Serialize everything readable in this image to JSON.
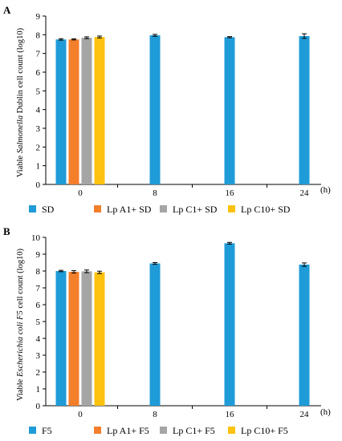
{
  "chart_data": [
    {
      "type": "bar",
      "panel_label": "A",
      "ylabel_pre": "Viable ",
      "ylabel_italic": "Salmonella",
      "ylabel_post": " Dublin cell count (log10)",
      "x_unit": "(h)",
      "categories": [
        "0",
        "8",
        "16",
        "24"
      ],
      "ylim": [
        0,
        9
      ],
      "yticks": [
        "0",
        "1",
        "2",
        "3",
        "4",
        "5",
        "6",
        "7",
        "8",
        "9"
      ],
      "grid": false,
      "legend_position": "bottom",
      "series": [
        {
          "name": "SD",
          "color": "#1f9bd7",
          "values": [
            7.75,
            7.97,
            7.87,
            7.93
          ],
          "errors": [
            0.04,
            0.05,
            0.03,
            0.12
          ]
        },
        {
          "name": "Lp A1+ SD",
          "color": "#f47f2b",
          "values": [
            7.75,
            null,
            null,
            null
          ],
          "errors": [
            0.03,
            null,
            null,
            null
          ]
        },
        {
          "name": "Lp C1+ SD",
          "color": "#a5a5a5",
          "values": [
            7.84,
            null,
            null,
            null
          ],
          "errors": [
            0.05,
            null,
            null,
            null
          ]
        },
        {
          "name": "Lp C10+ SD",
          "color": "#fdc20f",
          "values": [
            7.88,
            null,
            null,
            null
          ],
          "errors": [
            0.05,
            null,
            null,
            null
          ]
        }
      ]
    },
    {
      "type": "bar",
      "panel_label": "B",
      "ylabel_pre": "Viable ",
      "ylabel_italic": "Escherichia coli F5",
      "ylabel_post": " cell count (log10)",
      "x_unit": "(h)",
      "categories": [
        "0",
        "8",
        "16",
        "24"
      ],
      "ylim": [
        0,
        10
      ],
      "yticks": [
        "0",
        "1",
        "2",
        "3",
        "4",
        "5",
        "6",
        "7",
        "8",
        "9",
        "10"
      ],
      "grid": false,
      "legend_position": "bottom",
      "series": [
        {
          "name": "F5",
          "color": "#1f9bd7",
          "values": [
            8.0,
            8.45,
            9.65,
            8.38
          ],
          "errors": [
            0.04,
            0.05,
            0.05,
            0.1
          ]
        },
        {
          "name": "Lp A1+ F5",
          "color": "#f47f2b",
          "values": [
            7.95,
            null,
            null,
            null
          ],
          "errors": [
            0.07,
            null,
            null,
            null
          ]
        },
        {
          "name": "Lp C1+ F5",
          "color": "#a5a5a5",
          "values": [
            7.98,
            null,
            null,
            null
          ],
          "errors": [
            0.08,
            null,
            null,
            null
          ]
        },
        {
          "name": "Lp C10+ F5",
          "color": "#fdc20f",
          "values": [
            7.92,
            null,
            null,
            null
          ],
          "errors": [
            0.07,
            null,
            null,
            null
          ]
        }
      ]
    }
  ]
}
